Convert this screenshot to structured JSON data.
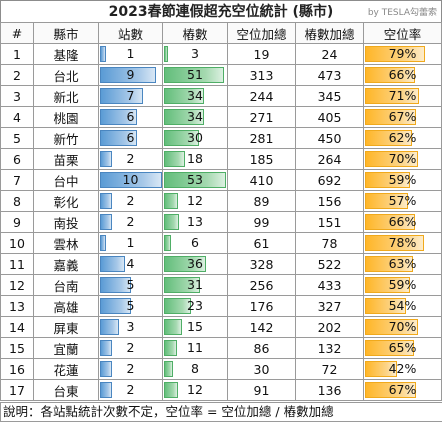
{
  "title": "2023春節連假超充空位統計 (縣市)",
  "credit": "by TESLA勾蕾索",
  "headers": [
    "#",
    "縣市",
    "站數",
    "樁數",
    "空位加總",
    "樁數加總",
    "空位率"
  ],
  "rows": [
    {
      "idx": "1",
      "county": "基隆",
      "stations": 1,
      "piles": 3,
      "empty_sum": "19",
      "pile_sum": "24",
      "rate": "79%",
      "rate_val": 0.79
    },
    {
      "idx": "2",
      "county": "台北",
      "stations": 9,
      "piles": 51,
      "empty_sum": "313",
      "pile_sum": "473",
      "rate": "66%",
      "rate_val": 0.66
    },
    {
      "idx": "3",
      "county": "新北",
      "stations": 7,
      "piles": 34,
      "empty_sum": "244",
      "pile_sum": "345",
      "rate": "71%",
      "rate_val": 0.71
    },
    {
      "idx": "4",
      "county": "桃園",
      "stations": 6,
      "piles": 34,
      "empty_sum": "271",
      "pile_sum": "405",
      "rate": "67%",
      "rate_val": 0.67
    },
    {
      "idx": "5",
      "county": "新竹",
      "stations": 6,
      "piles": 30,
      "empty_sum": "281",
      "pile_sum": "450",
      "rate": "62%",
      "rate_val": 0.62
    },
    {
      "idx": "6",
      "county": "苗栗",
      "stations": 2,
      "piles": 18,
      "empty_sum": "185",
      "pile_sum": "264",
      "rate": "70%",
      "rate_val": 0.7
    },
    {
      "idx": "7",
      "county": "台中",
      "stations": 10,
      "piles": 53,
      "empty_sum": "410",
      "pile_sum": "692",
      "rate": "59%",
      "rate_val": 0.59
    },
    {
      "idx": "8",
      "county": "彰化",
      "stations": 2,
      "piles": 12,
      "empty_sum": "89",
      "pile_sum": "156",
      "rate": "57%",
      "rate_val": 0.57
    },
    {
      "idx": "9",
      "county": "南投",
      "stations": 2,
      "piles": 13,
      "empty_sum": "99",
      "pile_sum": "151",
      "rate": "66%",
      "rate_val": 0.66
    },
    {
      "idx": "10",
      "county": "雲林",
      "stations": 1,
      "piles": 6,
      "empty_sum": "61",
      "pile_sum": "78",
      "rate": "78%",
      "rate_val": 0.78
    },
    {
      "idx": "11",
      "county": "嘉義",
      "stations": 4,
      "piles": 36,
      "empty_sum": "328",
      "pile_sum": "522",
      "rate": "63%",
      "rate_val": 0.63
    },
    {
      "idx": "12",
      "county": "台南",
      "stations": 5,
      "piles": 31,
      "empty_sum": "256",
      "pile_sum": "433",
      "rate": "59%",
      "rate_val": 0.59
    },
    {
      "idx": "13",
      "county": "高雄",
      "stations": 5,
      "piles": 23,
      "empty_sum": "176",
      "pile_sum": "327",
      "rate": "54%",
      "rate_val": 0.54
    },
    {
      "idx": "14",
      "county": "屏東",
      "stations": 3,
      "piles": 15,
      "empty_sum": "142",
      "pile_sum": "202",
      "rate": "70%",
      "rate_val": 0.7
    },
    {
      "idx": "15",
      "county": "宜蘭",
      "stations": 2,
      "piles": 11,
      "empty_sum": "86",
      "pile_sum": "132",
      "rate": "65%",
      "rate_val": 0.65
    },
    {
      "idx": "16",
      "county": "花蓮",
      "stations": 2,
      "piles": 8,
      "empty_sum": "30",
      "pile_sum": "72",
      "rate": "42%",
      "rate_val": 0.42
    },
    {
      "idx": "17",
      "county": "台東",
      "stations": 2,
      "piles": 12,
      "empty_sum": "91",
      "pile_sum": "136",
      "rate": "67%",
      "rate_val": 0.67
    }
  ],
  "note": "說明：各站點統計次數不定，空位率 = 空位加總 / 樁數加總",
  "colors": {
    "stations_bar": "#5a9bd5",
    "piles_bar": "#63be7b",
    "rate_bar": "#ffb628"
  }
}
